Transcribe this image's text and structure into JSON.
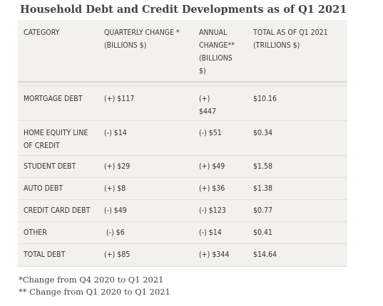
{
  "title": "Household Debt and Credit Developments as of Q1 2021",
  "table": {
    "headers": {
      "category": "CATEGORY",
      "quarterly_line1": "QUARTERLY CHANGE *",
      "quarterly_line2": "(BILLIONS $)",
      "annual_line1": "ANNUAL",
      "annual_line2": "CHANGE**",
      "annual_line3": "(BILLIONS",
      "annual_line4": "$)",
      "total_line1": "TOTAL AS OF Q1 2021",
      "total_line2": "(TRILLIONS $)"
    },
    "rows": [
      {
        "category_line1": "MORTGAGE DEBT",
        "category_line2": "",
        "quarterly": "(+) $117",
        "annual_line1": "(+)",
        "annual_line2": "$447",
        "total": "$10.16"
      },
      {
        "category_line1": "HOME EQUITY LINE",
        "category_line2": "OF CREDIT",
        "quarterly": "(-) $14",
        "annual_line1": "(-) $51",
        "annual_line2": "",
        "total": "$0.34"
      },
      {
        "category_line1": "STUDENT DEBT",
        "category_line2": "",
        "quarterly": "(+) $29",
        "annual_line1": "(+) $49",
        "annual_line2": "",
        "total": "$1.58"
      },
      {
        "category_line1": "AUTO DEBT",
        "category_line2": "",
        "quarterly": "(+) $8",
        "annual_line1": "(+) $36",
        "annual_line2": "",
        "total": "$1.38"
      },
      {
        "category_line1": "CREDIT CARD DEBT",
        "category_line2": "",
        "quarterly": "(-) $49",
        "annual_line1": "(-) $123",
        "annual_line2": "",
        "total": "$0.77"
      },
      {
        "category_line1": "OTHER",
        "category_line2": "",
        "quarterly": " (-) $6",
        "annual_line1": "(-) $14",
        "annual_line2": "",
        "total": "$0.41"
      },
      {
        "category_line1": "TOTAL DEBT",
        "category_line2": "",
        "quarterly": "(+) $85",
        "annual_line1": "(+) $344",
        "annual_line2": "",
        "total": "$14.64"
      }
    ]
  },
  "notes": {
    "quarterly": "*Change from Q4 2020 to Q1 2021",
    "annual": "** Change from Q1 2020 to Q1 2021"
  }
}
